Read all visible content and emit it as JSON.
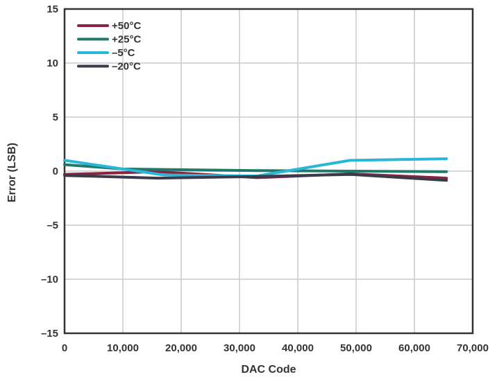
{
  "chart_data": {
    "type": "line",
    "xlabel": "DAC Code",
    "ylabel": "Error (LSB)",
    "xlim": [
      0,
      70000
    ],
    "ylim": [
      -15,
      15
    ],
    "x_ticks": [
      0,
      10000,
      20000,
      30000,
      40000,
      50000,
      60000,
      70000
    ],
    "x_tick_labels": [
      "0",
      "10,000",
      "20,000",
      "30,000",
      "40,000",
      "50,000",
      "60,000",
      "70,000"
    ],
    "y_ticks": [
      15,
      10,
      5,
      0,
      -5,
      -10,
      -15
    ],
    "y_tick_labels": [
      "15",
      "10",
      "5",
      "0",
      "–5",
      "–10",
      "–15"
    ],
    "grid": true,
    "legend_position": "top-left",
    "series": [
      {
        "name": "+50°C",
        "color": "#8b2340",
        "x": [
          0,
          16000,
          33000,
          49000,
          65500
        ],
        "y": [
          -0.3,
          -0.05,
          -0.6,
          -0.25,
          -0.65
        ]
      },
      {
        "name": "+25°C",
        "color": "#1f7a6b",
        "x": [
          0,
          10000,
          33000,
          49000,
          65500
        ],
        "y": [
          0.6,
          0.2,
          0.05,
          0.0,
          -0.05
        ]
      },
      {
        "name": "–5°C",
        "color": "#2ab6d6",
        "x": [
          0,
          10000,
          17000,
          33000,
          49000,
          65500
        ],
        "y": [
          1.0,
          0.2,
          -0.35,
          -0.45,
          1.0,
          1.15
        ]
      },
      {
        "name": "–20°C",
        "color": "#3a3a4a",
        "x": [
          0,
          16000,
          33000,
          49000,
          65500
        ],
        "y": [
          -0.4,
          -0.65,
          -0.5,
          -0.3,
          -0.85
        ]
      }
    ]
  }
}
